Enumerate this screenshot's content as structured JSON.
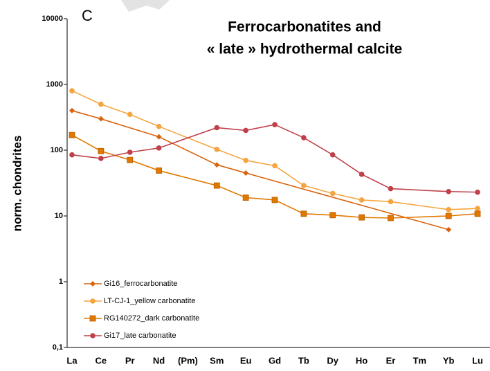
{
  "chart_data": {
    "type": "line",
    "panel_label": "C",
    "title": [
      "Ferrocarbonatites and",
      "« late » hydrothermal calcite"
    ],
    "y_label": "norm. chondrites",
    "categories": [
      "La",
      "Ce",
      "Pr",
      "Nd",
      "(Pm)",
      "Sm",
      "Eu",
      "Gd",
      "Tb",
      "Dy",
      "Ho",
      "Er",
      "Tm",
      "Yb",
      "Lu"
    ],
    "log_y": true,
    "ylim": [
      0.1,
      10000
    ],
    "yticks": [
      {
        "value": 0.1,
        "label": "0,1"
      },
      1,
      10,
      100,
      1000,
      10000
    ],
    "grid": false,
    "legend": "lower-left",
    "series": [
      {
        "name": "Gi16_ferrocarbonatite",
        "color": "#d9640f",
        "marker": "diamond",
        "x": [
          "La",
          "Ce",
          "Nd",
          "Sm",
          "Eu",
          "Yb"
        ],
        "values": [
          400,
          300,
          160,
          60,
          45,
          6.2
        ]
      },
      {
        "name": "LT-CJ-1_yellow carbonatite",
        "color": "#f5a540",
        "marker": "circle",
        "x": [
          "La",
          "Ce",
          "Pr",
          "Nd",
          "Sm",
          "Eu",
          "Gd",
          "Tb",
          "Dy",
          "Ho",
          "Er",
          "Yb",
          "Lu"
        ],
        "values": [
          800,
          500,
          350,
          230,
          103,
          70,
          58,
          29,
          22,
          17.5,
          16.5,
          12.5,
          13
        ]
      },
      {
        "name": "RG140272_dark carbonatite",
        "color": "#e07800",
        "marker": "square",
        "x": [
          "La",
          "Ce",
          "Pr",
          "Nd",
          "Sm",
          "Eu",
          "Gd",
          "Tb",
          "Dy",
          "Ho",
          "Er",
          "Yb",
          "Lu"
        ],
        "values": [
          170,
          97,
          71,
          49,
          29,
          19,
          17.5,
          10.8,
          10.3,
          9.5,
          9.3,
          10,
          10.8
        ]
      },
      {
        "name": "Gi17_late carbonatite",
        "color": "#c0404a",
        "marker": "circle",
        "x": [
          "La",
          "Ce",
          "Pr",
          "Nd",
          "Sm",
          "Eu",
          "Gd",
          "Tb",
          "Dy",
          "Ho",
          "Er",
          "Yb",
          "Lu"
        ],
        "values": [
          85,
          75,
          93,
          108,
          220,
          200,
          245,
          155,
          85,
          43,
          26,
          23.5,
          23
        ]
      }
    ]
  }
}
